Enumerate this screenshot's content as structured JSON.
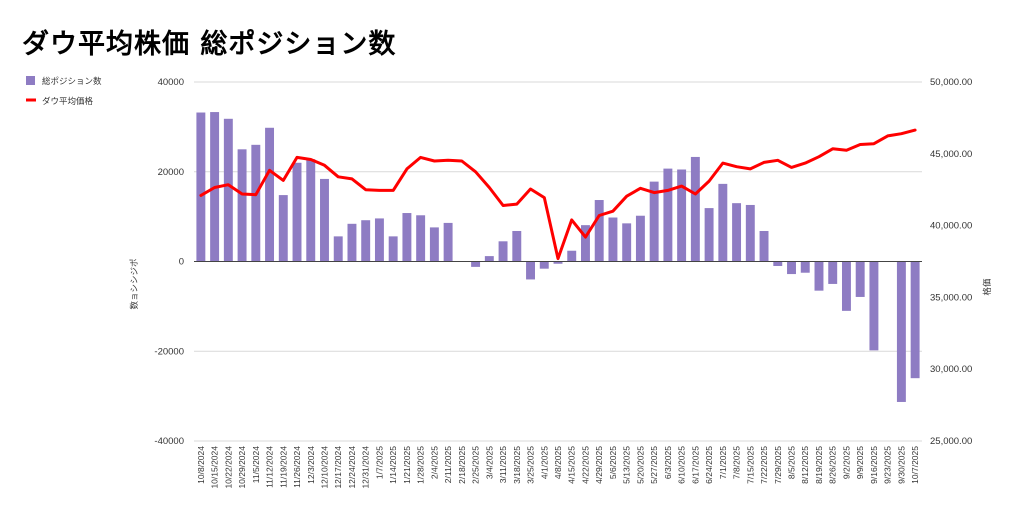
{
  "chart_data": {
    "type": "bar+line",
    "title": "ダウ平均株価 総ポジション数",
    "legend": [
      "総ポジション数",
      "ダウ平均価格"
    ],
    "legend_position": "top-left",
    "ylabel_left": "数ョシシジポ",
    "ylabel_right": "格価",
    "ylim_left": [
      -40000,
      40000
    ],
    "ylim_right": [
      25000,
      50000
    ],
    "yticks_left": [
      "40000",
      "20000",
      "0",
      "-20000",
      "-40000"
    ],
    "yticks_right": [
      "50,000.00",
      "45,000.00",
      "40,000.00",
      "35,000.00",
      "30,000.00",
      "25,000.00"
    ],
    "grid": true,
    "colors": {
      "bar": "#8e7cc3",
      "line": "#ff0000",
      "grid": "#d9d9d9"
    },
    "categories": [
      "10/8/2024",
      "10/15/2024",
      "10/22/2024",
      "10/29/2024",
      "11/5/2024",
      "11/12/2024",
      "11/19/2024",
      "11/26/2024",
      "12/3/2024",
      "12/10/2024",
      "12/17/2024",
      "12/24/2024",
      "12/31/2024",
      "1/7/2025",
      "1/14/2025",
      "1/21/2025",
      "1/28/2025",
      "2/4/2025",
      "2/11/2025",
      "2/18/2025",
      "2/25/2025",
      "3/4/2025",
      "3/11/2025",
      "3/18/2025",
      "3/25/2025",
      "4/1/2025",
      "4/8/2025",
      "4/15/2025",
      "4/22/2025",
      "4/29/2025",
      "5/6/2025",
      "5/13/2025",
      "5/20/2025",
      "5/27/2025",
      "6/3/2025",
      "6/10/2025",
      "6/17/2025",
      "6/24/2025",
      "7/1/2025",
      "7/8/2025",
      "7/15/2025",
      "7/22/2025",
      "7/29/2025",
      "8/5/2025",
      "8/12/2025",
      "8/19/2025",
      "8/26/2025",
      "9/2/2025",
      "9/9/2025",
      "9/16/2025",
      "9/23/2025",
      "9/30/2025",
      "10/7/2025"
    ],
    "series": [
      {
        "name": "総ポジション数",
        "type": "bar",
        "values": [
          33200,
          33300,
          31800,
          25000,
          26000,
          29800,
          14800,
          22000,
          22800,
          18400,
          5600,
          8400,
          9200,
          9600,
          5600,
          10800,
          10300,
          7600,
          8600,
          0,
          -1200,
          1200,
          4500,
          6800,
          -4000,
          -1600,
          -500,
          2400,
          8100,
          13700,
          9800,
          8500,
          10200,
          17800,
          20700,
          20500,
          23300,
          11900,
          17300,
          13000,
          12600,
          6800,
          -1000,
          -2800,
          -2500,
          -6500,
          -5000,
          -11000,
          -7900,
          -19800,
          0,
          -31300,
          -26000
        ]
      },
      {
        "name": "ダウ平均価格",
        "type": "line",
        "axis": "right",
        "values": [
          42100,
          42650,
          42850,
          42200,
          42150,
          43850,
          43150,
          44750,
          44600,
          44200,
          43400,
          43250,
          42500,
          42450,
          42450,
          43950,
          44750,
          44500,
          44550,
          44500,
          43750,
          42650,
          41400,
          41500,
          42550,
          41950,
          37700,
          40400,
          39200,
          40700,
          41000,
          42050,
          42600,
          42300,
          42450,
          42750,
          42200,
          43100,
          44350,
          44100,
          43950,
          44400,
          44550,
          44050,
          44350,
          44800,
          45350,
          45250,
          45650,
          45700,
          46250,
          46400,
          46650
        ]
      }
    ]
  }
}
